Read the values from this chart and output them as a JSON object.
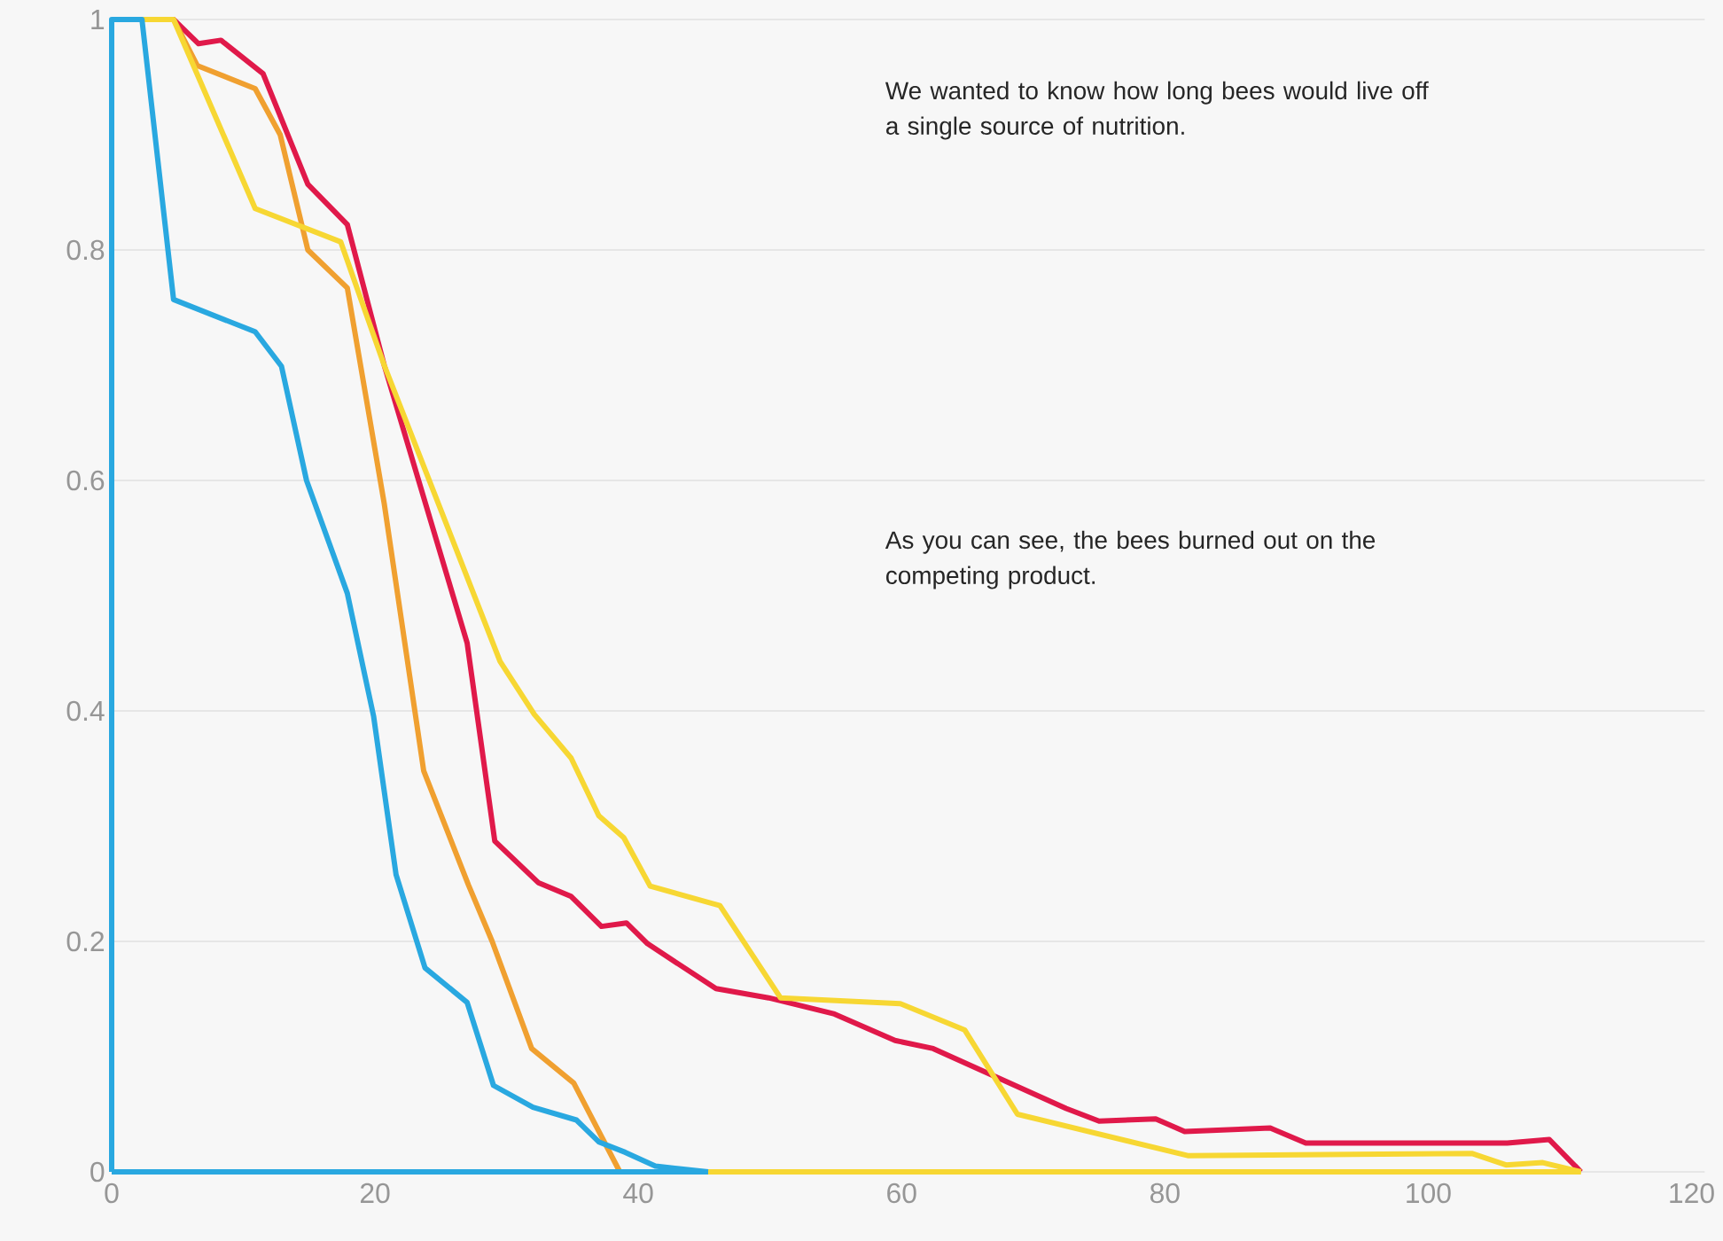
{
  "chart_data": {
    "type": "line",
    "xlim": [
      0,
      121
    ],
    "ylim": [
      0,
      1
    ],
    "xticks": [
      0,
      20,
      40,
      60,
      80,
      100,
      120
    ],
    "yticks": [
      0,
      0.2,
      0.4,
      0.6,
      0.8,
      1
    ],
    "grid": "y",
    "marker": "none",
    "line_style": "solid",
    "annotations": [
      "We wanted to know how long bees would live off a single source of nutrition.",
      "As you can see, the bees burned out on the competing product."
    ],
    "series": [
      {
        "color": "#e0194a",
        "x": [
          0,
          4.7,
          6.6,
          8.3,
          11.5,
          14.9,
          17.9,
          20.7,
          27,
          29.1,
          32.4,
          34.9,
          37.2,
          39.1,
          40.7,
          45.9,
          49.9,
          54.9,
          59.5,
          62.4,
          72.5,
          75,
          79.3,
          81.5,
          88,
          90.7,
          106,
          109.2,
          111.6
        ],
        "values": [
          1,
          1,
          0.979,
          0.982,
          0.953,
          0.857,
          0.822,
          0.7,
          0.459,
          0.287,
          0.251,
          0.239,
          0.213,
          0.216,
          0.198,
          0.159,
          0.151,
          0.137,
          0.114,
          0.107,
          0.055,
          0.044,
          0.046,
          0.035,
          0.038,
          0.025,
          0.025,
          0.028,
          0
        ]
      },
      {
        "color": "#f0a030",
        "x": [
          0,
          4.7,
          6.5,
          10.9,
          12.8,
          14.9,
          17.9,
          20.7,
          23.7,
          27.1,
          28.9,
          31.9,
          35.1,
          38.6
        ],
        "values": [
          1,
          1,
          0.96,
          0.94,
          0.9,
          0.8,
          0.767,
          0.58,
          0.348,
          0.249,
          0.2,
          0.107,
          0.077,
          0
        ]
      },
      {
        "color": "#f7d733",
        "x": [
          0,
          4.7,
          10.9,
          17.4,
          20.7,
          29.5,
          32.1,
          34.9,
          37,
          38.9,
          40.9,
          46.2,
          50.8,
          59.9,
          64.8,
          68.8,
          81.8,
          103.3,
          105.9,
          108.7,
          111.6
        ],
        "values": [
          1,
          1,
          0.836,
          0.807,
          0.7,
          0.443,
          0.397,
          0.359,
          0.309,
          0.29,
          0.248,
          0.231,
          0.151,
          0.146,
          0.123,
          0.05,
          0.014,
          0.016,
          0.006,
          0.008,
          0
        ]
      },
      {
        "color": "#f7d733",
        "x": [
          0,
          111.6
        ],
        "values": [
          0,
          0
        ]
      },
      {
        "color": "#29a8e0",
        "x": [
          0,
          0,
          2.3,
          4.7,
          10.9,
          12.9,
          14.8,
          17.9,
          19.9,
          21.6,
          23.8,
          27,
          29,
          32,
          35.3,
          37,
          39,
          41.3,
          45.3
        ],
        "values": [
          0,
          1,
          1,
          0.757,
          0.729,
          0.699,
          0.6,
          0.502,
          0.395,
          0.258,
          0.177,
          0.147,
          0.075,
          0.056,
          0.045,
          0.026,
          0.017,
          0.005,
          0
        ]
      },
      {
        "color": "#29a8e0",
        "x": [
          0,
          45.3
        ],
        "values": [
          0,
          0
        ]
      }
    ]
  }
}
